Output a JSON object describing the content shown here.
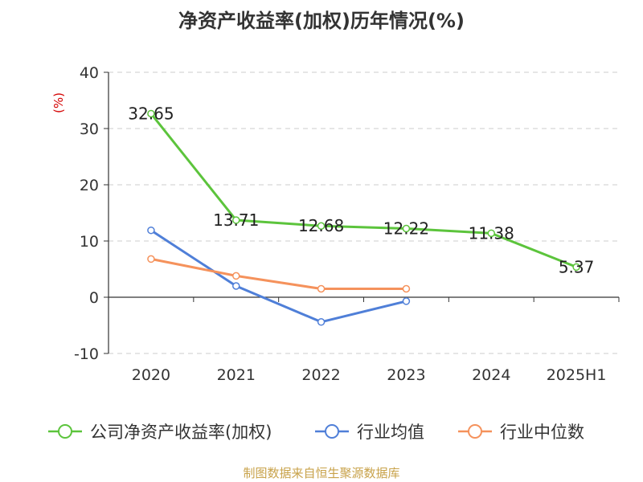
{
  "chart_data": {
    "type": "line",
    "title": "净资产收益率(加权)历年情况(%)",
    "ylabel": "(%)",
    "xlabel": "",
    "categories": [
      "2020",
      "2021",
      "2022",
      "2023",
      "2024",
      "2025H1"
    ],
    "ylim": [
      -10,
      40
    ],
    "yticks": [
      -10,
      0,
      10,
      20,
      30,
      40
    ],
    "grid": true,
    "legend_position": "bottom",
    "series": [
      {
        "name": "公司净资产收益率(加权)",
        "color": "#5cc43c",
        "values": [
          32.65,
          13.71,
          12.68,
          12.22,
          11.38,
          5.37
        ],
        "labels": [
          "32.65",
          "13.71",
          "12.68",
          "12.22",
          "11.38",
          "5.37"
        ]
      },
      {
        "name": "行业均值",
        "color": "#4f7fd8",
        "values": [
          11.9,
          2.0,
          -4.4,
          -0.7,
          null,
          null
        ]
      },
      {
        "name": "行业中位数",
        "color": "#f5925c",
        "values": [
          6.8,
          3.8,
          1.5,
          1.5,
          null,
          null
        ]
      }
    ]
  },
  "source_text": "制图数据来自恒生聚源数据库"
}
